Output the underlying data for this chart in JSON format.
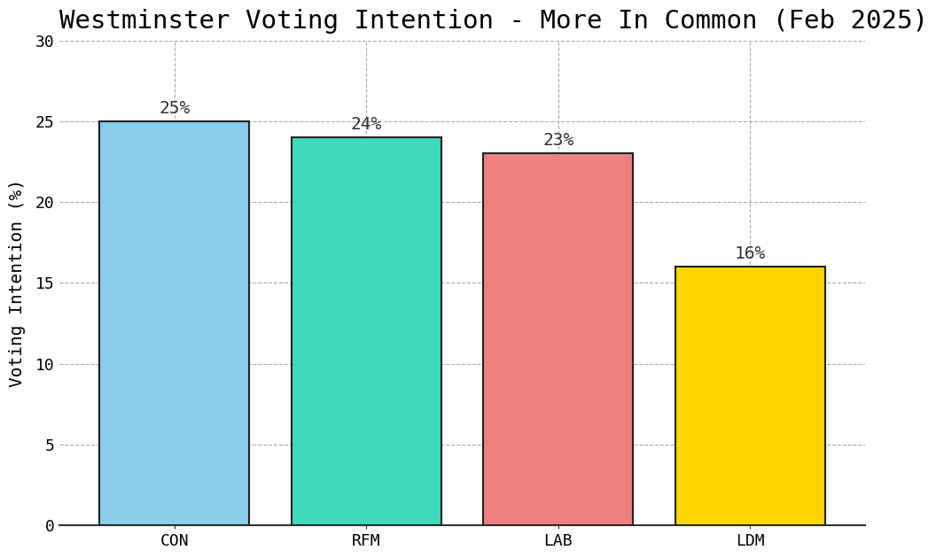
{
  "title": "Westminster Voting Intention - More In Common (Feb 2025)",
  "categories": [
    "CON",
    "RFM",
    "LAB",
    "LDM"
  ],
  "values": [
    25,
    24,
    23,
    16
  ],
  "labels": [
    "25%",
    "24%",
    "23%",
    "16%"
  ],
  "bar_colors": [
    "#87CEEB",
    "#3DDBB8",
    "#F08080",
    "#FFD700"
  ],
  "bar_edgecolors": [
    "#222222",
    "#222222",
    "#222222",
    "#222222"
  ],
  "ylabel": "Voting Intention (%)",
  "ylim": [
    0,
    30
  ],
  "yticks": [
    0,
    5,
    10,
    15,
    20,
    25,
    30
  ],
  "title_fontsize": 21,
  "label_fontsize": 14,
  "tick_fontsize": 13,
  "ylabel_fontsize": 14,
  "background_color": "#FFFFFF",
  "grid_color": "#AAAAAA",
  "bar_width": 0.78
}
